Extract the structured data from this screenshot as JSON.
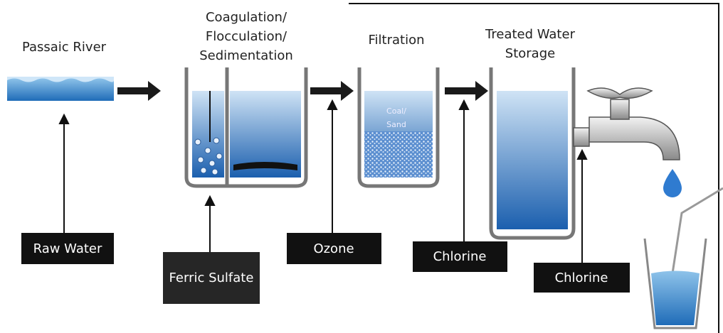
{
  "stages": [
    {
      "label_lines": [
        "Passaic River"
      ]
    },
    {
      "label_lines": [
        "Coagulation/",
        "Flocculation/",
        "Sedimentation"
      ]
    },
    {
      "label_lines": [
        "Filtration"
      ],
      "media_lines": [
        "Coal/",
        "Sand"
      ]
    },
    {
      "label_lines": [
        "Treated Water",
        "Storage"
      ]
    }
  ],
  "inputs": [
    {
      "label": "Raw Water"
    },
    {
      "label": "Ferric Sulfate"
    },
    {
      "label": "Ozone"
    },
    {
      "label": "Chlorine"
    },
    {
      "label": "Chlorine"
    }
  ]
}
